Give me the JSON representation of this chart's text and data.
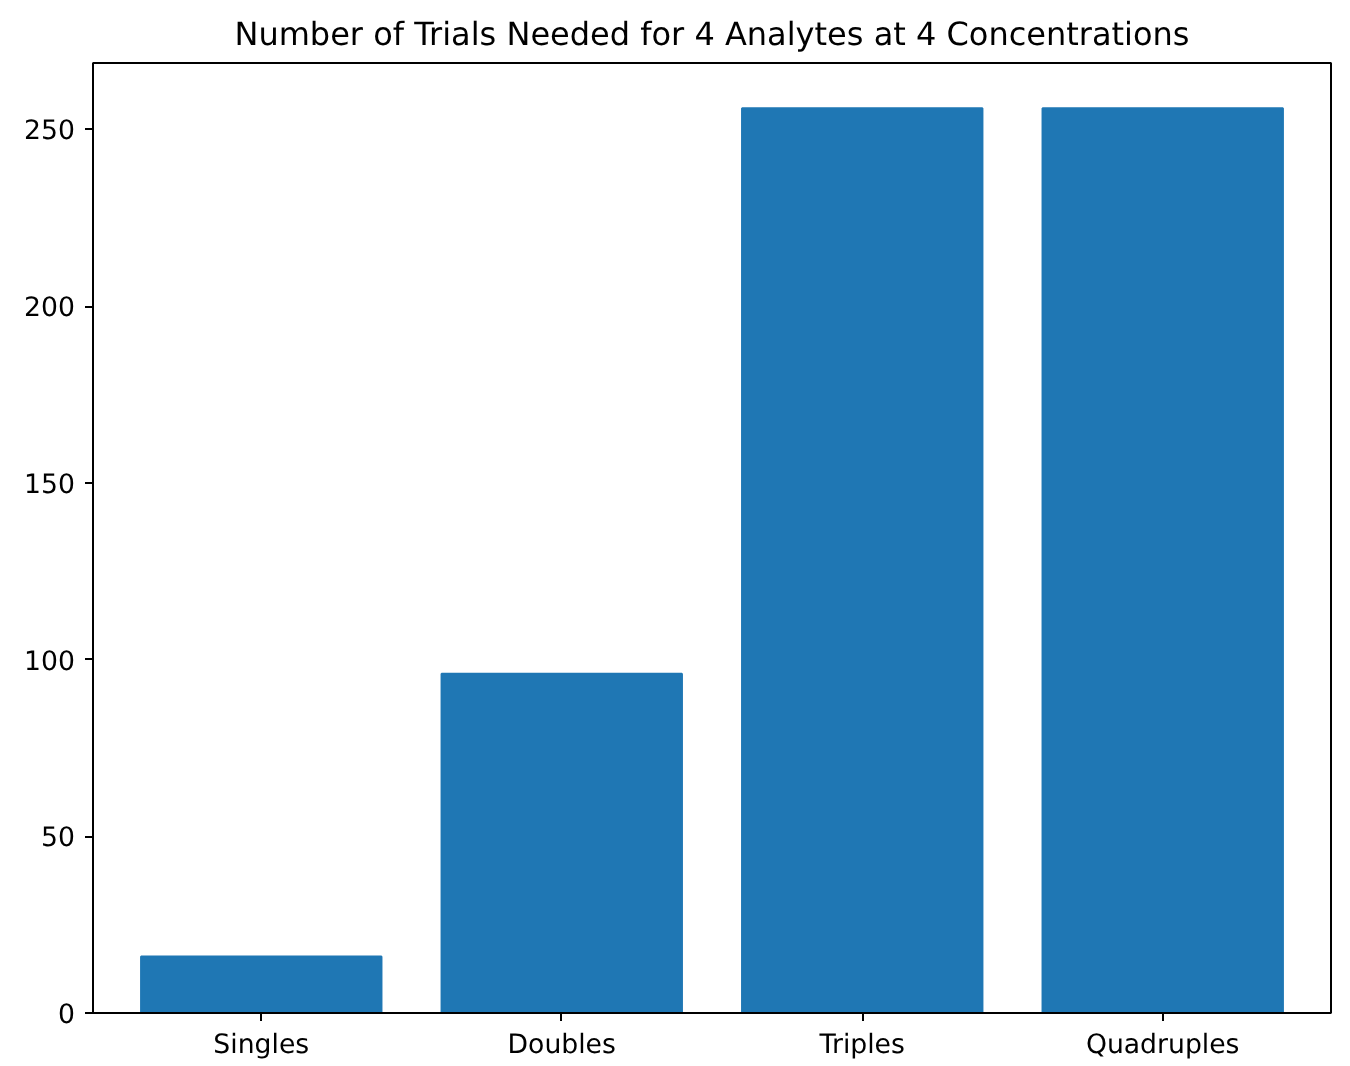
{
  "chart_data": {
    "type": "bar",
    "title": "Number of Trials Needed for 4 Analytes at 4 Concentrations",
    "categories": [
      "Singles",
      "Doubles",
      "Triples",
      "Quadruples"
    ],
    "values": [
      16,
      96,
      256,
      256
    ],
    "color": "#1f77b4",
    "ylim": [
      0,
      268.8
    ],
    "yticks": [
      0,
      50,
      100,
      150,
      200,
      250
    ]
  }
}
